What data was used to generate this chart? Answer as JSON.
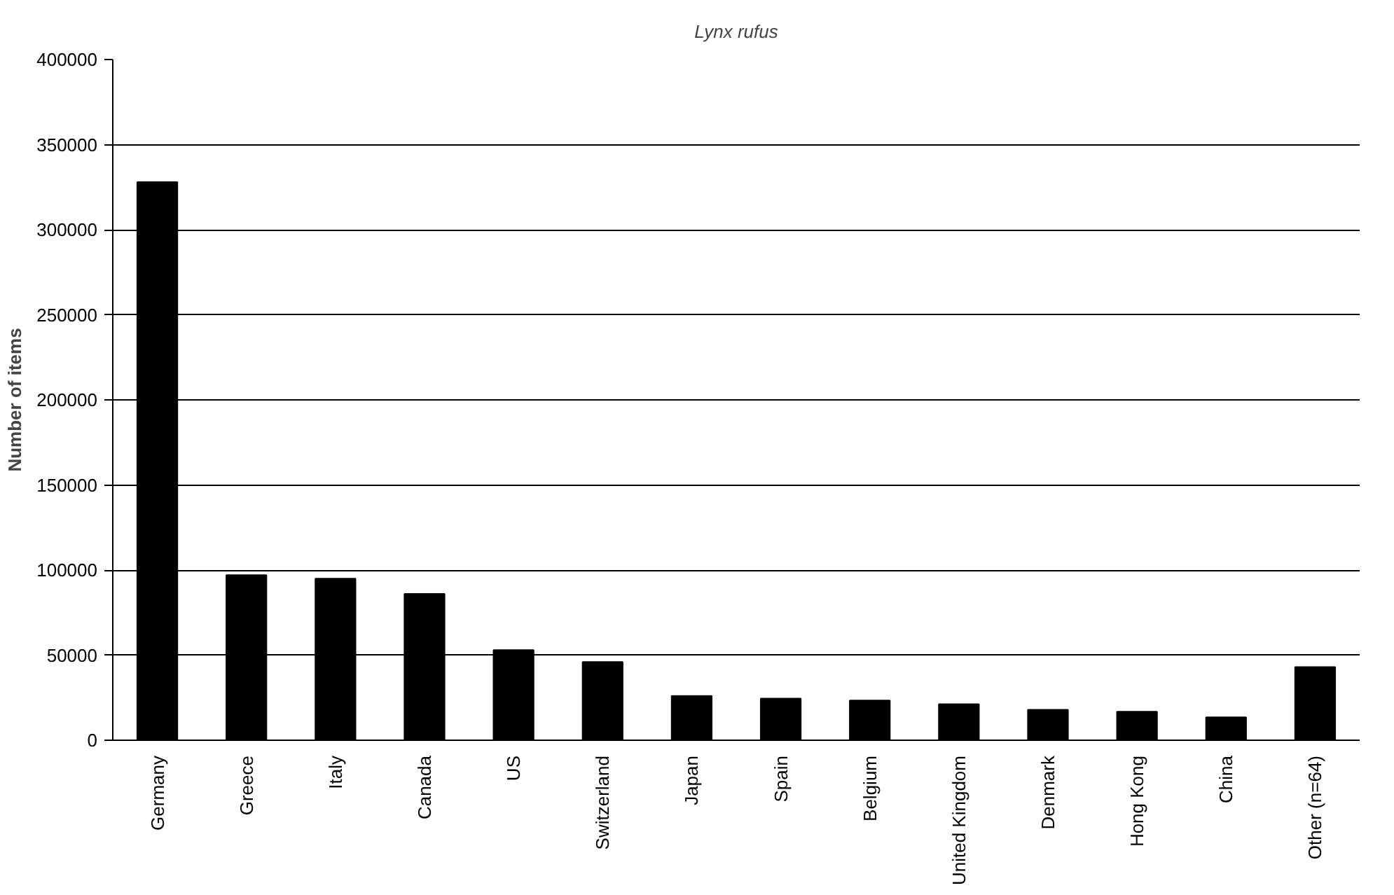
{
  "chart_data": {
    "type": "bar",
    "title": "Lynx rufus",
    "ylabel": "Number of items",
    "categories": [
      "Germany",
      "Greece",
      "Italy",
      "Canada",
      "US",
      "Switzerland",
      "Japan",
      "Spain",
      "Belgium",
      "United Kingdom",
      "Denmark",
      "Hong Kong",
      "China",
      "Other (n=64)"
    ],
    "values": [
      328000,
      97000,
      95000,
      86000,
      53000,
      46000,
      26000,
      24500,
      23400,
      21200,
      17900,
      16800,
      13500,
      43000
    ],
    "color": "#000000",
    "ylim": [
      0,
      400000
    ],
    "yticks": [
      0,
      50000,
      100000,
      150000,
      200000,
      250000,
      300000,
      350000,
      400000
    ],
    "grid": "y"
  }
}
